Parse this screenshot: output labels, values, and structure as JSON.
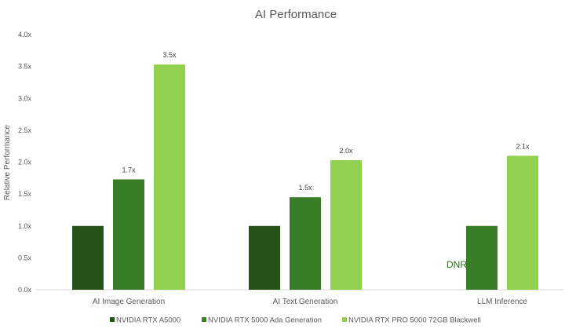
{
  "chart_data": {
    "type": "bar",
    "title": "AI Performance",
    "ylabel": "Relative Performance",
    "xlabel": "",
    "ylim": [
      0,
      4.0
    ],
    "yticks": [
      "0.0x",
      "0.5x",
      "1.0x",
      "1.5x",
      "2.0x",
      "2.5x",
      "3.0x",
      "3.5x",
      "4.0x"
    ],
    "ytick_values": [
      0,
      0.5,
      1.0,
      1.5,
      2.0,
      2.5,
      3.0,
      3.5,
      4.0
    ],
    "categories": [
      "AI Image Generation",
      "AI Text Generation",
      "LLM Inference"
    ],
    "series": [
      {
        "name": "NVIDIA RTX A5000",
        "color": "#255219",
        "values": [
          1.0,
          1.0,
          null
        ],
        "labels": [
          "",
          "",
          ""
        ]
      },
      {
        "name": "NVIDIA RTX 5000 Ada Generation",
        "color": "#3a7d28",
        "values": [
          1.73,
          1.45,
          1.0
        ],
        "labels": [
          "1.7x",
          "1.5x",
          ""
        ]
      },
      {
        "name": "NVIDIA RTX PRO 5000 72GB Blackwell",
        "color": "#92d050",
        "values": [
          3.53,
          2.03,
          2.1
        ],
        "labels": [
          "3.5x",
          "2.0x",
          "2.1x"
        ]
      }
    ],
    "annotations": [
      {
        "category": "LLM Inference",
        "text": "DNR"
      }
    ],
    "grid": false,
    "legend": "bottom"
  }
}
